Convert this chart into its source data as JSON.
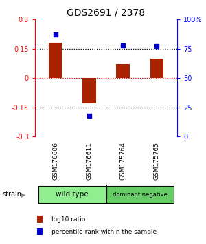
{
  "title": "GDS2691 / 2378",
  "samples": [
    "GSM176606",
    "GSM176611",
    "GSM175764",
    "GSM175765"
  ],
  "log10_ratio": [
    0.18,
    -0.13,
    0.07,
    0.1
  ],
  "percentile_rank": [
    87,
    18,
    78,
    77
  ],
  "groups": [
    {
      "label": "wild type",
      "samples": [
        0,
        1
      ],
      "color": "#90ee90"
    },
    {
      "label": "dominant negative",
      "samples": [
        2,
        3
      ],
      "color": "#66cc66"
    }
  ],
  "bar_color": "#aa2200",
  "dot_color": "#0000cc",
  "ylim_left": [
    -0.3,
    0.3
  ],
  "ylim_right": [
    0,
    100
  ],
  "yticks_left": [
    -0.3,
    -0.15,
    0,
    0.15,
    0.3
  ],
  "yticks_right": [
    0,
    25,
    50,
    75,
    100
  ],
  "ytick_labels_left": [
    "-0.3",
    "-0.15",
    "0",
    "0.15",
    "0.3"
  ],
  "ytick_labels_right": [
    "0",
    "25",
    "50",
    "75",
    "100%"
  ],
  "hlines": [
    -0.15,
    0,
    0.15
  ],
  "hline_colors": [
    "black",
    "red",
    "black"
  ],
  "hline_styles": [
    "dotted",
    "dotted",
    "dotted"
  ],
  "bg_color": "#ffffff",
  "plot_bg_color": "#ffffff",
  "label_log10": "log10 ratio",
  "label_pct": "percentile rank within the sample",
  "strain_label": "strain",
  "sample_row_color": "#cccccc",
  "group_row_border": "#000000",
  "bar_width": 0.4
}
